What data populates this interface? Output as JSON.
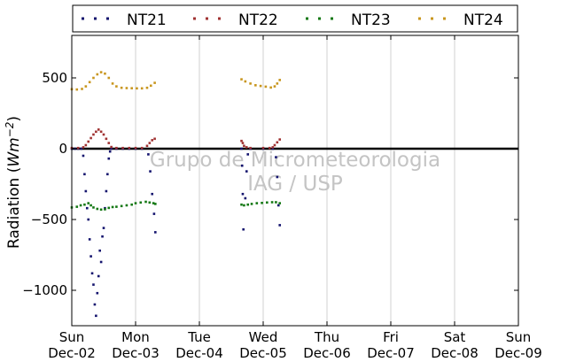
{
  "chart_data": {
    "type": "scatter",
    "title": "",
    "ylabel": "Radiation (Wm⁻²)",
    "ylabel_plain": "Radiation (",
    "ylabel_unit": "Wm",
    "ylabel_exp": "−2",
    "ylabel_close": ")",
    "xlabel": "",
    "ylim": [
      -1250,
      800
    ],
    "xlim": [
      0,
      7
    ],
    "yticks": [
      {
        "value": 500,
        "label": "500"
      },
      {
        "value": 0,
        "label": "0"
      },
      {
        "value": -500,
        "label": "−500"
      },
      {
        "value": -1000,
        "label": "−1000"
      }
    ],
    "xticks": [
      {
        "value": 0,
        "day": "Sun",
        "date": "Dec-02"
      },
      {
        "value": 1,
        "day": "Mon",
        "date": "Dec-03"
      },
      {
        "value": 2,
        "day": "Tue",
        "date": "Dec-04"
      },
      {
        "value": 3,
        "day": "Wed",
        "date": "Dec-05"
      },
      {
        "value": 4,
        "day": "Thu",
        "date": "Dec-06"
      },
      {
        "value": 5,
        "day": "Fri",
        "date": "Dec-07"
      },
      {
        "value": 6,
        "day": "Sat",
        "date": "Dec-08"
      },
      {
        "value": 7,
        "day": "Sun",
        "date": "Dec-09"
      }
    ],
    "grid": "vertical",
    "legend_position": "top",
    "zero_line": true,
    "watermark": [
      "Grupo de Micrometeorologia",
      "IAG / USP"
    ],
    "series": [
      {
        "name": "NT21",
        "color": "#14146e",
        "points": [
          [
            0.0,
            0
          ],
          [
            0.05,
            0
          ],
          [
            0.1,
            0
          ],
          [
            0.15,
            0
          ],
          [
            0.18,
            -50
          ],
          [
            0.2,
            -180
          ],
          [
            0.22,
            -300
          ],
          [
            0.24,
            -420
          ],
          [
            0.26,
            -500
          ],
          [
            0.28,
            -640
          ],
          [
            0.3,
            -760
          ],
          [
            0.32,
            -880
          ],
          [
            0.34,
            -960
          ],
          [
            0.36,
            -1100
          ],
          [
            0.38,
            -1180
          ],
          [
            0.4,
            -1020
          ],
          [
            0.42,
            -900
          ],
          [
            0.44,
            -720
          ],
          [
            0.46,
            -800
          ],
          [
            0.48,
            -620
          ],
          [
            0.5,
            -560
          ],
          [
            0.52,
            -420
          ],
          [
            0.54,
            -300
          ],
          [
            0.56,
            -180
          ],
          [
            0.58,
            -70
          ],
          [
            0.6,
            -20
          ],
          [
            0.62,
            0
          ],
          [
            0.7,
            0
          ],
          [
            0.8,
            0
          ],
          [
            0.9,
            0
          ],
          [
            1.0,
            0
          ],
          [
            1.1,
            0
          ],
          [
            1.2,
            -40
          ],
          [
            1.23,
            -160
          ],
          [
            1.26,
            -320
          ],
          [
            1.29,
            -460
          ],
          [
            1.31,
            -590
          ],
          [
            2.66,
            0
          ],
          [
            2.67,
            -120
          ],
          [
            2.68,
            -320
          ],
          [
            2.69,
            -570
          ],
          [
            2.72,
            -350
          ],
          [
            2.74,
            -160
          ],
          [
            2.76,
            -40
          ],
          [
            2.8,
            0
          ],
          [
            3.0,
            0
          ],
          [
            3.15,
            0
          ],
          [
            3.2,
            -60
          ],
          [
            3.22,
            -200
          ],
          [
            3.24,
            -400
          ],
          [
            3.26,
            -540
          ]
        ]
      },
      {
        "name": "NT22",
        "color": "#a03232",
        "points": [
          [
            0.0,
            5
          ],
          [
            0.1,
            5
          ],
          [
            0.18,
            10
          ],
          [
            0.22,
            25
          ],
          [
            0.26,
            50
          ],
          [
            0.3,
            75
          ],
          [
            0.34,
            100
          ],
          [
            0.38,
            120
          ],
          [
            0.42,
            135
          ],
          [
            0.46,
            120
          ],
          [
            0.5,
            100
          ],
          [
            0.54,
            70
          ],
          [
            0.58,
            40
          ],
          [
            0.62,
            12
          ],
          [
            0.7,
            5
          ],
          [
            0.8,
            5
          ],
          [
            0.9,
            5
          ],
          [
            1.0,
            5
          ],
          [
            1.1,
            5
          ],
          [
            1.18,
            20
          ],
          [
            1.22,
            40
          ],
          [
            1.26,
            60
          ],
          [
            1.3,
            70
          ],
          [
            2.66,
            55
          ],
          [
            2.68,
            40
          ],
          [
            2.7,
            20
          ],
          [
            2.74,
            10
          ],
          [
            2.8,
            5
          ],
          [
            3.0,
            5
          ],
          [
            3.1,
            5
          ],
          [
            3.15,
            10
          ],
          [
            3.18,
            25
          ],
          [
            3.22,
            45
          ],
          [
            3.26,
            65
          ]
        ]
      },
      {
        "name": "NT23",
        "color": "#147814",
        "points": [
          [
            0.0,
            -415
          ],
          [
            0.08,
            -410
          ],
          [
            0.14,
            -400
          ],
          [
            0.2,
            -395
          ],
          [
            0.26,
            -385
          ],
          [
            0.3,
            -400
          ],
          [
            0.34,
            -415
          ],
          [
            0.4,
            -425
          ],
          [
            0.46,
            -430
          ],
          [
            0.52,
            -428
          ],
          [
            0.58,
            -418
          ],
          [
            0.64,
            -412
          ],
          [
            0.7,
            -410
          ],
          [
            0.78,
            -405
          ],
          [
            0.86,
            -400
          ],
          [
            0.94,
            -395
          ],
          [
            1.0,
            -385
          ],
          [
            1.08,
            -380
          ],
          [
            1.16,
            -375
          ],
          [
            1.22,
            -380
          ],
          [
            1.28,
            -385
          ],
          [
            1.31,
            -390
          ],
          [
            2.66,
            -395
          ],
          [
            2.7,
            -400
          ],
          [
            2.76,
            -395
          ],
          [
            2.82,
            -390
          ],
          [
            2.9,
            -385
          ],
          [
            2.98,
            -383
          ],
          [
            3.06,
            -380
          ],
          [
            3.14,
            -378
          ],
          [
            3.2,
            -378
          ],
          [
            3.26,
            -385
          ]
        ]
      },
      {
        "name": "NT24",
        "color": "#c8961e",
        "points": [
          [
            0.0,
            420
          ],
          [
            0.08,
            418
          ],
          [
            0.16,
            422
          ],
          [
            0.22,
            440
          ],
          [
            0.28,
            470
          ],
          [
            0.34,
            500
          ],
          [
            0.4,
            525
          ],
          [
            0.46,
            540
          ],
          [
            0.52,
            530
          ],
          [
            0.58,
            500
          ],
          [
            0.64,
            460
          ],
          [
            0.7,
            440
          ],
          [
            0.78,
            430
          ],
          [
            0.86,
            428
          ],
          [
            0.94,
            427
          ],
          [
            1.02,
            426
          ],
          [
            1.1,
            426
          ],
          [
            1.18,
            430
          ],
          [
            1.24,
            445
          ],
          [
            1.3,
            465
          ],
          [
            2.66,
            490
          ],
          [
            2.72,
            475
          ],
          [
            2.8,
            460
          ],
          [
            2.88,
            448
          ],
          [
            2.96,
            443
          ],
          [
            3.04,
            438
          ],
          [
            3.12,
            432
          ],
          [
            3.18,
            440
          ],
          [
            3.22,
            460
          ],
          [
            3.26,
            485
          ]
        ]
      }
    ]
  }
}
